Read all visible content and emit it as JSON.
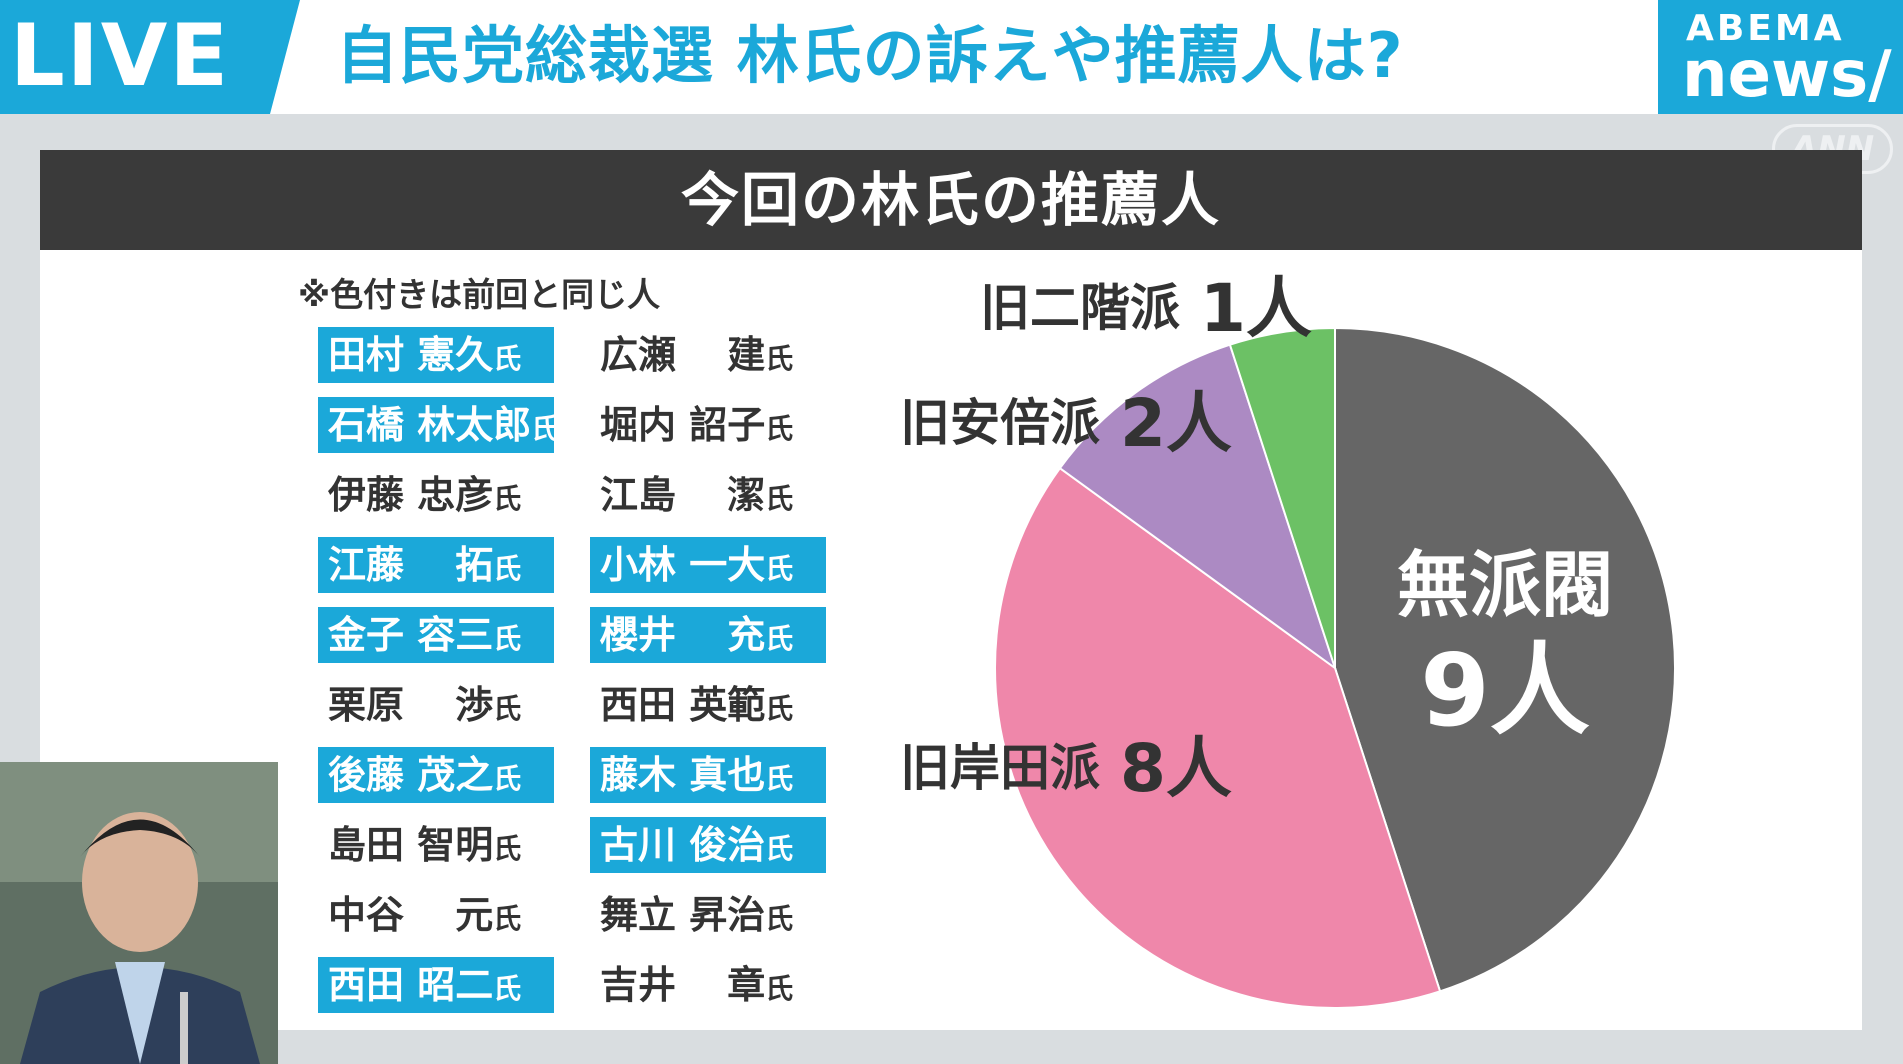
{
  "header": {
    "live_label": "LIVE",
    "headline": "自民党総裁選 林氏の訴えや推薦人は?",
    "brand_top": "ABEMA",
    "brand_bottom": "news/",
    "watermark": "ANN"
  },
  "panel": {
    "title": "今回の林氏の推薦人",
    "note": "※色付きは前回と同じ人",
    "name_suffix": "氏",
    "rows": [
      [
        {
          "name": "田村 憲久",
          "highlight": true
        },
        {
          "name": "広瀬　 建",
          "highlight": false
        }
      ],
      [
        {
          "name": "石橋 林太郎",
          "highlight": true
        },
        {
          "name": "堀内 詔子",
          "highlight": false
        }
      ],
      [
        {
          "name": "伊藤 忠彦",
          "highlight": false
        },
        {
          "name": "江島　 潔",
          "highlight": false
        }
      ],
      [
        {
          "name": "江藤　 拓",
          "highlight": true
        },
        {
          "name": "小林 一大",
          "highlight": true
        }
      ],
      [
        {
          "name": "金子 容三",
          "highlight": true
        },
        {
          "name": "櫻井　 充",
          "highlight": true
        }
      ],
      [
        {
          "name": "栗原　 渉",
          "highlight": false
        },
        {
          "name": "西田 英範",
          "highlight": false
        }
      ],
      [
        {
          "name": "後藤 茂之",
          "highlight": true
        },
        {
          "name": "藤木 真也",
          "highlight": true
        }
      ],
      [
        {
          "name": "島田 智明",
          "highlight": false
        },
        {
          "name": "古川 俊治",
          "highlight": true
        }
      ],
      [
        {
          "name": "中谷　 元",
          "highlight": false
        },
        {
          "name": "舞立 昇治",
          "highlight": false
        }
      ],
      [
        {
          "name": "西田 昭二",
          "highlight": true
        },
        {
          "name": "吉井　 章",
          "highlight": false
        }
      ]
    ]
  },
  "chart_data": {
    "type": "pie",
    "unit": "人",
    "slices": [
      {
        "label": "無派閥",
        "value": 9,
        "color": "#666666",
        "value_text": "9人"
      },
      {
        "label": "旧岸田派",
        "value": 8,
        "color": "#ef87aa",
        "value_text": "8人"
      },
      {
        "label": "旧安倍派",
        "value": 2,
        "color": "#ac8ac3",
        "value_text": "2人"
      },
      {
        "label": "旧二階派",
        "value": 1,
        "color": "#6cc165",
        "value_text": "1人"
      }
    ]
  },
  "colors": {
    "accent": "#1ba8d9",
    "title_bar": "#3a3a3a"
  }
}
